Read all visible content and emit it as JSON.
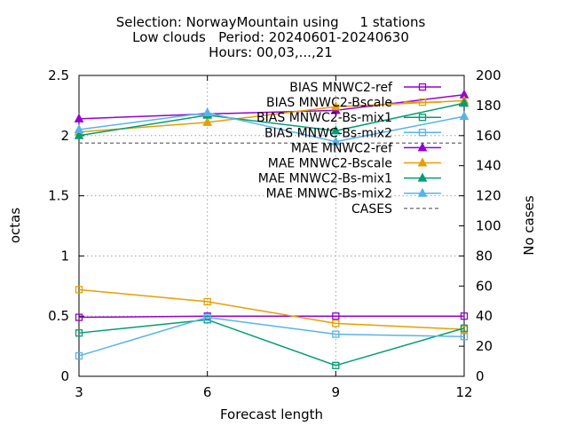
{
  "chart_data": {
    "type": "line",
    "title_lines": [
      "Selection: NorwayMountain using     1 stations",
      "Low clouds   Period: 20240601-20240630",
      "Hours: 00,03,...,21"
    ],
    "xlabel": "Forecast length",
    "ylabel": "octas",
    "y2label": "No cases",
    "x": [
      3,
      6,
      9,
      12
    ],
    "xlim": [
      3,
      12
    ],
    "ylim": [
      0,
      2.5
    ],
    "y2lim": [
      0,
      200
    ],
    "xticks": [
      "3",
      "6",
      "9",
      "12"
    ],
    "yticks": [
      "0",
      "0.5",
      "1",
      "1.5",
      "2",
      "2.5"
    ],
    "y2ticks": [
      "0",
      "20",
      "40",
      "60",
      "80",
      "100",
      "120",
      "140",
      "160",
      "180",
      "200"
    ],
    "grid": true,
    "legend_position": "top-right",
    "series": [
      {
        "name": "BIAS MNWC2-ref",
        "values": [
          0.49,
          0.5,
          0.5,
          0.5
        ],
        "color": "#9400d3",
        "marker": "square",
        "axis": "y"
      },
      {
        "name": "BIAS MNWC2-Bscale",
        "values": [
          0.72,
          0.62,
          0.44,
          0.39
        ],
        "color": "#e69f00",
        "marker": "square",
        "axis": "y"
      },
      {
        "name": "BIAS MNWC2-Bs-mix1",
        "values": [
          0.36,
          0.47,
          0.09,
          0.4
        ],
        "color": "#009e73",
        "marker": "square",
        "axis": "y"
      },
      {
        "name": "BIAS MNWC-Bs-mix2",
        "values": [
          0.17,
          0.49,
          0.35,
          0.33
        ],
        "color": "#56b4e9",
        "marker": "square",
        "axis": "y"
      },
      {
        "name": "MAE MNWC2-ref",
        "values": [
          2.14,
          2.18,
          2.21,
          2.34
        ],
        "color": "#9400d3",
        "marker": "triangle",
        "axis": "y"
      },
      {
        "name": "MAE MNWC2-Bscale",
        "values": [
          2.03,
          2.11,
          2.24,
          2.29
        ],
        "color": "#e69f00",
        "marker": "triangle",
        "axis": "y"
      },
      {
        "name": "MAE MNWC2-Bs-mix1",
        "values": [
          2.0,
          2.17,
          2.04,
          2.27
        ],
        "color": "#009e73",
        "marker": "triangle",
        "axis": "y"
      },
      {
        "name": "MAE MNWC-Bs-mix2",
        "values": [
          2.05,
          2.19,
          1.95,
          2.16
        ],
        "color": "#56b4e9",
        "marker": "triangle",
        "axis": "y"
      },
      {
        "name": "CASES",
        "values": [
          155,
          155,
          155,
          155
        ],
        "color": "#808080",
        "marker": "none",
        "dashed": true,
        "axis": "y2"
      }
    ]
  }
}
